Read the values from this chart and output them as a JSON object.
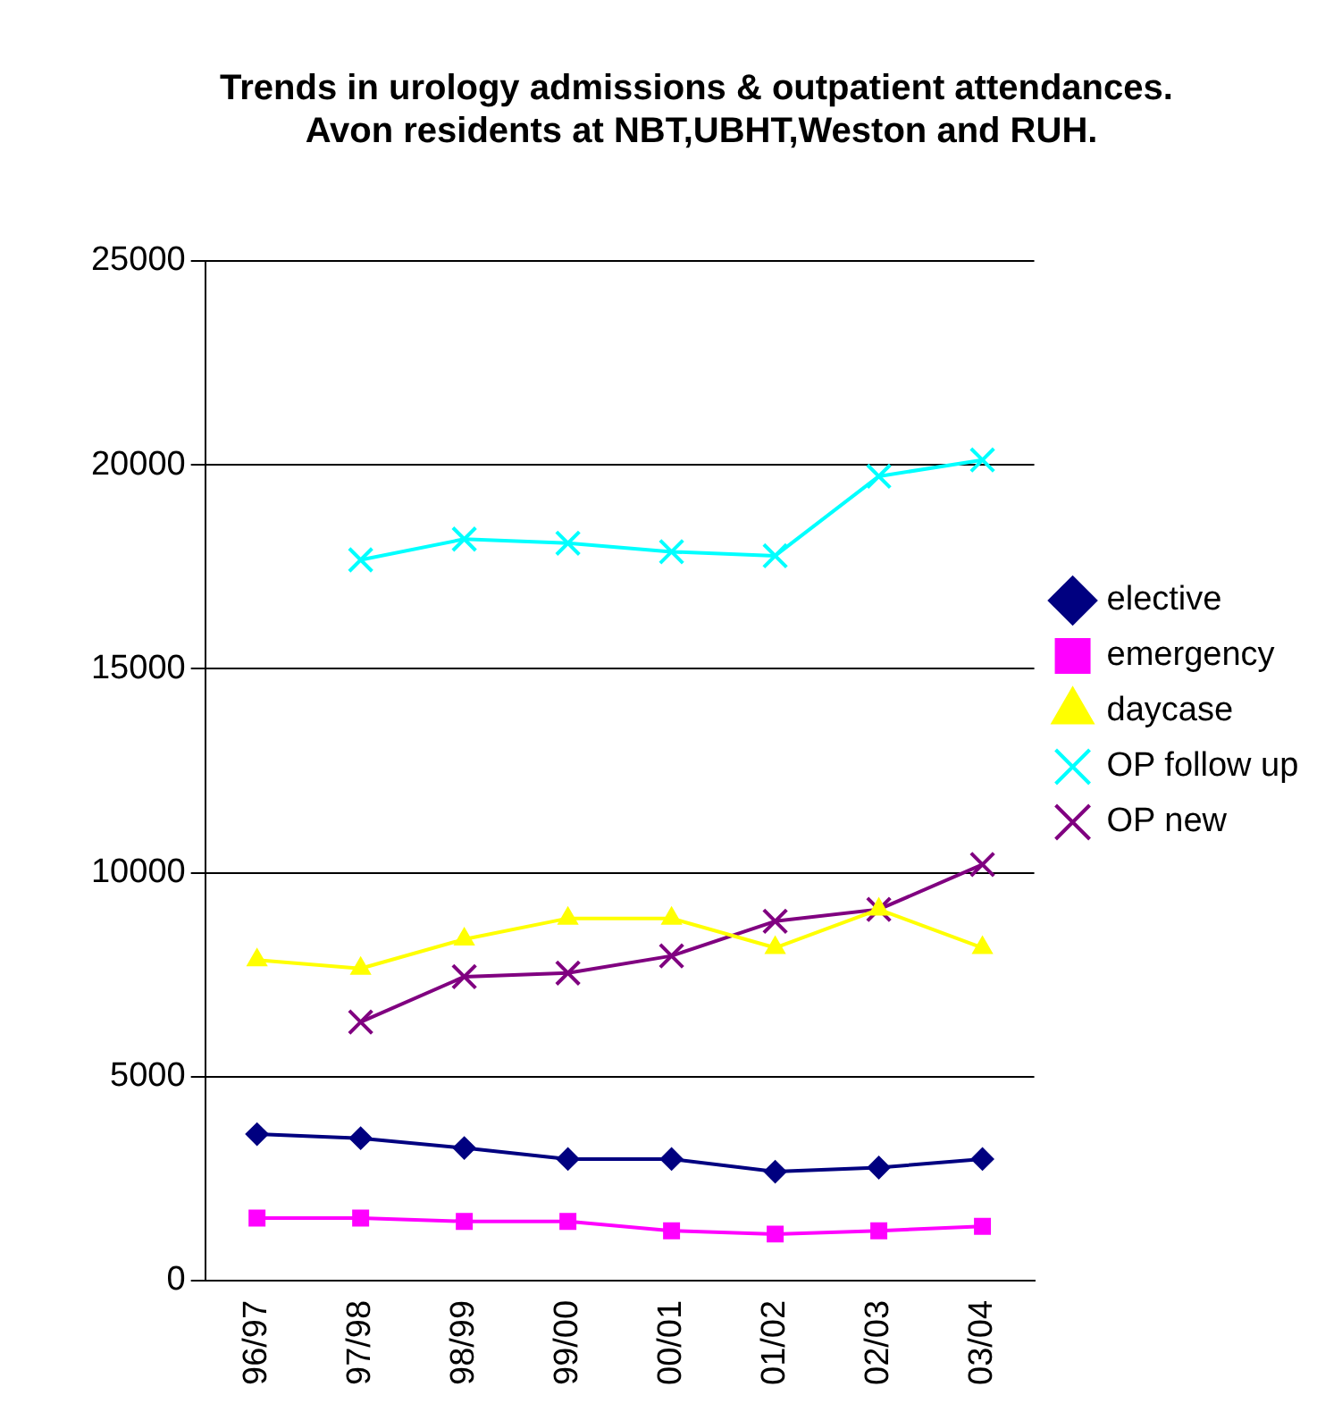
{
  "chart_data": {
    "type": "line",
    "title": "Trends in urology admissions & outpatient attendances.  Avon residents at NBT,UBHT,Weston and RUH.",
    "categories": [
      "96/97",
      "97/98",
      "98/99",
      "99/00",
      "00/01",
      "01/02",
      "02/03",
      "03/04"
    ],
    "series": [
      {
        "name": "elective",
        "color": "#000080",
        "marker": "diamond",
        "values": [
          3590,
          3490,
          3250,
          2980,
          2980,
          2670,
          2770,
          2980
        ]
      },
      {
        "name": "emergency",
        "color": "#ff00ff",
        "marker": "square",
        "values": [
          1530,
          1530,
          1450,
          1450,
          1220,
          1140,
          1220,
          1330
        ]
      },
      {
        "name": "daycase",
        "color": "#ffff00",
        "marker": "triangle",
        "values": [
          7860,
          7650,
          8370,
          8880,
          8880,
          8160,
          9100,
          8160
        ]
      },
      {
        "name": "OP follow up",
        "color": "#00ffff",
        "marker": "cross",
        "values": [
          null,
          17670,
          18180,
          18080,
          17870,
          17770,
          19720,
          20120
        ]
      },
      {
        "name": "OP new",
        "color": "#800080",
        "marker": "cross",
        "values": [
          null,
          6340,
          7450,
          7540,
          7960,
          8810,
          9100,
          10200
        ]
      }
    ],
    "ylim": [
      0,
      25000
    ],
    "yticks": [
      0,
      5000,
      10000,
      15000,
      20000,
      25000
    ],
    "grid": "y",
    "legend": "right",
    "line_style": "solid"
  }
}
